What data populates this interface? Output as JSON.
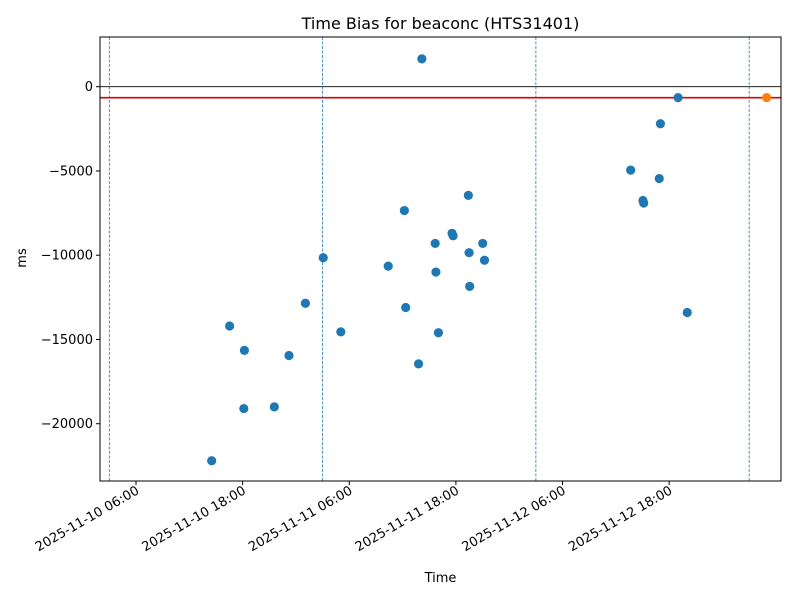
{
  "chart_data": {
    "type": "scatter",
    "title": "Time Bias for beaconc (HTS31401)",
    "xlabel": "Time",
    "ylabel": "ms",
    "x_type": "datetime",
    "xlim": [
      "2025-11-10T01:57",
      "2025-11-13T06:35"
    ],
    "ylim": [
      -23400,
      2950
    ],
    "x_ticks": [
      {
        "value": "2025-11-10T06:00",
        "label": "2025-11-10 06:00"
      },
      {
        "value": "2025-11-10T18:00",
        "label": "2025-11-10 18:00"
      },
      {
        "value": "2025-11-11T06:00",
        "label": "2025-11-11 06:00"
      },
      {
        "value": "2025-11-11T18:00",
        "label": "2025-11-11 18:00"
      },
      {
        "value": "2025-11-12T06:00",
        "label": "2025-11-12 06:00"
      },
      {
        "value": "2025-11-12T18:00",
        "label": "2025-11-12 18:00"
      }
    ],
    "y_ticks": [
      {
        "value": 0,
        "label": "0"
      },
      {
        "value": -5000,
        "label": "−5000"
      },
      {
        "value": -10000,
        "label": "−10000"
      },
      {
        "value": -15000,
        "label": "−15000"
      },
      {
        "value": -20000,
        "label": "−20000"
      }
    ],
    "grid": false,
    "vertical_lines": {
      "color": "#1f77b4",
      "style": "dashed",
      "x": [
        "2025-11-10T03:00",
        "2025-11-11T03:00",
        "2025-11-12T03:00",
        "2025-11-13T03:00"
      ]
    },
    "horizontal_lines": [
      {
        "y": 0,
        "color": "#000000"
      },
      {
        "y": -650,
        "color": "#e00000"
      }
    ],
    "series": [
      {
        "color": "#1f77b4",
        "points": [
          {
            "x": "2025-11-10T14:31",
            "y": -22200
          },
          {
            "x": "2025-11-10T16:32",
            "y": -14200
          },
          {
            "x": "2025-11-10T18:12",
            "y": -15650
          },
          {
            "x": "2025-11-10T18:08",
            "y": -19100
          },
          {
            "x": "2025-11-10T21:34",
            "y": -19000
          },
          {
            "x": "2025-11-10T23:13",
            "y": -15950
          },
          {
            "x": "2025-11-11T01:04",
            "y": -12850
          },
          {
            "x": "2025-11-11T03:04",
            "y": -10150
          },
          {
            "x": "2025-11-11T05:03",
            "y": -14550
          },
          {
            "x": "2025-11-11T10:23",
            "y": -10650
          },
          {
            "x": "2025-11-11T12:12",
            "y": -7350
          },
          {
            "x": "2025-11-11T12:21",
            "y": -13100
          },
          {
            "x": "2025-11-11T13:48",
            "y": -16450
          },
          {
            "x": "2025-11-11T14:10",
            "y": 1650
          },
          {
            "x": "2025-11-11T15:40",
            "y": -9300
          },
          {
            "x": "2025-11-11T15:45",
            "y": -11000
          },
          {
            "x": "2025-11-11T16:02",
            "y": -14600
          },
          {
            "x": "2025-11-11T17:34",
            "y": -8700
          },
          {
            "x": "2025-11-11T17:41",
            "y": -8850
          },
          {
            "x": "2025-11-11T19:24",
            "y": -6450
          },
          {
            "x": "2025-11-11T19:29",
            "y": -9850
          },
          {
            "x": "2025-11-11T19:33",
            "y": -11850
          },
          {
            "x": "2025-11-11T21:01",
            "y": -9300
          },
          {
            "x": "2025-11-11T21:13",
            "y": -10300
          },
          {
            "x": "2025-11-12T13:40",
            "y": -4950
          },
          {
            "x": "2025-11-12T15:03",
            "y": -6750
          },
          {
            "x": "2025-11-12T15:08",
            "y": -6900
          },
          {
            "x": "2025-11-12T16:53",
            "y": -5450
          },
          {
            "x": "2025-11-12T17:01",
            "y": -2200
          },
          {
            "x": "2025-11-12T19:00",
            "y": -650
          },
          {
            "x": "2025-11-12T20:02",
            "y": -13400
          }
        ]
      },
      {
        "color": "#ff7f0e",
        "points": [
          {
            "x": "2025-11-13T04:58",
            "y": -650
          }
        ]
      }
    ]
  }
}
